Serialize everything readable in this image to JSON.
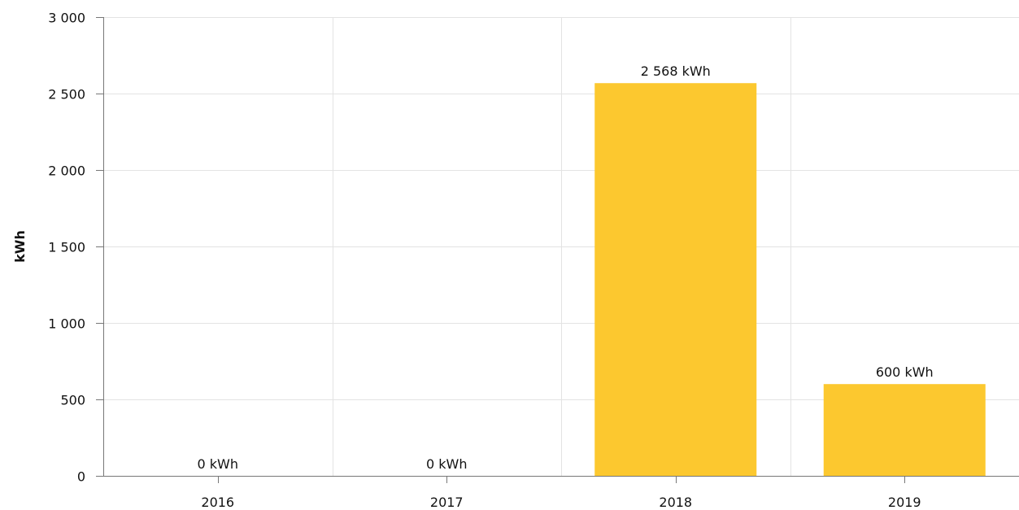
{
  "chart_data": {
    "type": "bar",
    "title": "",
    "xlabel": "",
    "ylabel": "kWh",
    "ylim": [
      0,
      3000
    ],
    "yticks": [
      0,
      500,
      1000,
      1500,
      2000,
      2500,
      3000
    ],
    "ytick_labels": [
      "0",
      "500",
      "1 000",
      "1 500",
      "2 000",
      "2 500",
      "3 000"
    ],
    "categories": [
      "2016",
      "2017",
      "2018",
      "2019"
    ],
    "values": [
      0,
      0,
      2568,
      600
    ],
    "value_labels": [
      "0 kWh",
      "0 kWh",
      "2 568 kWh",
      "600 kWh"
    ],
    "grid": true,
    "legend": "none",
    "colors": {
      "bar": "#fcc82f",
      "grid": "#e3e3e3",
      "axis": "#777777"
    }
  }
}
